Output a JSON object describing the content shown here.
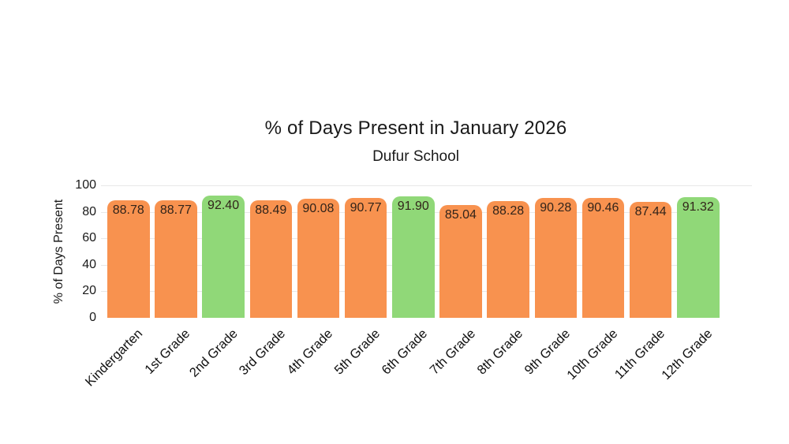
{
  "chart_data": {
    "type": "bar",
    "title": "% of Days Present in January 2026",
    "subtitle": "Dufur School",
    "xlabel": "",
    "ylabel": "% of Days Present",
    "ylim": [
      0,
      100
    ],
    "yticks": [
      0,
      20,
      40,
      60,
      80,
      100
    ],
    "grid": "horizontal",
    "legend": "none",
    "categories": [
      "Kindergarten",
      "1st Grade",
      "2nd Grade",
      "3rd Grade",
      "4th Grade",
      "5th Grade",
      "6th Grade",
      "7th Grade",
      "8th Grade",
      "9th Grade",
      "10th Grade",
      "11th Grade",
      "12th Grade"
    ],
    "values": [
      88.78,
      88.77,
      92.4,
      88.49,
      90.08,
      90.77,
      91.9,
      85.04,
      88.28,
      90.28,
      90.46,
      87.44,
      91.32
    ],
    "value_labels": [
      "88.78",
      "88.77",
      "92.40",
      "88.49",
      "90.08",
      "90.77",
      "91.90",
      "85.04",
      "88.28",
      "90.28",
      "90.46",
      "87.44",
      "91.32"
    ],
    "bar_color_keys": [
      "orange",
      "orange",
      "green",
      "orange",
      "orange",
      "orange",
      "green",
      "orange",
      "orange",
      "orange",
      "orange",
      "orange",
      "green"
    ],
    "colors": {
      "orange": "#F8924F",
      "green": "#90D878",
      "label_text": "#32241A",
      "axis_text": "#1A1A1A",
      "gridline": "#E8E8E8",
      "background": "#FFFFFF"
    }
  }
}
